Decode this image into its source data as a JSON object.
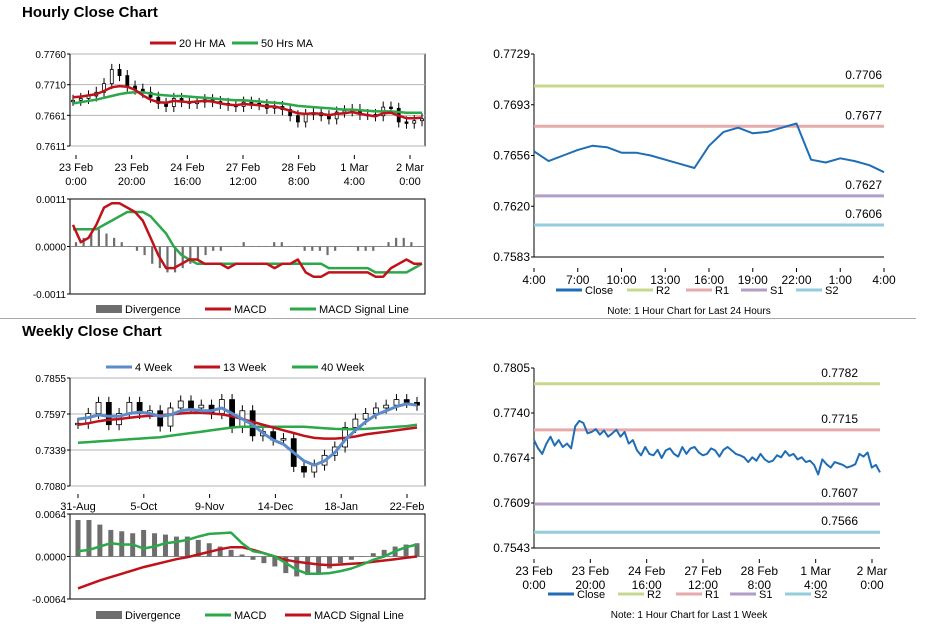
{
  "titles": {
    "hourly": "Hourly Close Chart",
    "weekly": "Weekly Close Chart"
  },
  "colors": {
    "ma20": "#c0121b",
    "ma50": "#2aa84a",
    "close": "#1f6eb5",
    "r2": "#c6d88e",
    "r1": "#e6aaaa",
    "s1": "#b19ec6",
    "s2": "#93cddc",
    "bars": "#6e6e6e",
    "grid": "#b4b4b4"
  },
  "chart_data": [
    {
      "id": "hourly-candles",
      "type": "candlestick",
      "legend": [
        "20 Hr MA",
        "50 Hrs MA"
      ],
      "legend_position": "top",
      "y_ticks": [
        "0.7760",
        "0.7710",
        "0.7661",
        "0.7611"
      ],
      "ylim": [
        0.7611,
        0.776
      ],
      "x_ticks": [
        [
          "23 Feb",
          "0:00"
        ],
        [
          "23 Feb",
          "20:00"
        ],
        [
          "24 Feb",
          "16:00"
        ],
        [
          "27 Feb",
          "12:00"
        ],
        [
          "28 Feb",
          "8:00"
        ],
        [
          "1 Mar",
          "4:00"
        ],
        [
          "2 Mar",
          "0:00"
        ]
      ],
      "grid": "horizontal",
      "close": [
        0.7685,
        0.7688,
        0.7692,
        0.7698,
        0.7712,
        0.7735,
        0.7725,
        0.7708,
        0.7703,
        0.7698,
        0.769,
        0.768,
        0.7675,
        0.7688,
        0.7683,
        0.768,
        0.7682,
        0.7686,
        0.7683,
        0.768,
        0.7677,
        0.7675,
        0.7682,
        0.768,
        0.7678,
        0.7672,
        0.7675,
        0.767,
        0.766,
        0.765,
        0.7662,
        0.7665,
        0.766,
        0.7655,
        0.7666,
        0.7668,
        0.767,
        0.7662,
        0.7662,
        0.766,
        0.7674,
        0.7672,
        0.765,
        0.7648,
        0.7652,
        0.7655
      ],
      "ma20": [
        0.769,
        0.7691,
        0.7693,
        0.7695,
        0.77,
        0.7706,
        0.7708,
        0.7707,
        0.7702,
        0.7693,
        0.7686,
        0.7682,
        0.7681,
        0.7684,
        0.7683,
        0.7682,
        0.7683,
        0.7684,
        0.7683,
        0.768,
        0.7678,
        0.7677,
        0.7679,
        0.7678,
        0.7677,
        0.7675,
        0.7675,
        0.7672,
        0.7668,
        0.7664,
        0.7663,
        0.7664,
        0.7663,
        0.7661,
        0.7663,
        0.7664,
        0.7666,
        0.7663,
        0.7661,
        0.7659,
        0.7664,
        0.7665,
        0.766,
        0.7656,
        0.7656,
        0.7657
      ],
      "ma50": [
        0.768,
        0.7682,
        0.7684,
        0.7686,
        0.7689,
        0.7692,
        0.7695,
        0.7697,
        0.7698,
        0.7698,
        0.7696,
        0.7694,
        0.7693,
        0.7692,
        0.7692,
        0.7691,
        0.769,
        0.7689,
        0.7688,
        0.7687,
        0.7686,
        0.7685,
        0.7685,
        0.7684,
        0.7683,
        0.7682,
        0.7681,
        0.768,
        0.7678,
        0.7676,
        0.7675,
        0.7674,
        0.7673,
        0.7672,
        0.7671,
        0.767,
        0.767,
        0.7669,
        0.7668,
        0.7667,
        0.7667,
        0.7667,
        0.7666,
        0.7665,
        0.7665,
        0.7665
      ]
    },
    {
      "id": "hourly-macd",
      "type": "bar+line",
      "y_ticks": [
        "0.0011",
        "0.0000",
        "-0.0011"
      ],
      "ylim": [
        -0.0011,
        0.0011
      ],
      "legend": [
        "Divergence",
        "MACD",
        "MACD Signal Line"
      ],
      "legend_position": "bottom",
      "divergence": [
        0.0001,
        0.0002,
        0.0003,
        0.0004,
        0.0003,
        0.0002,
        0.0001,
        0.0,
        -0.0001,
        -0.0002,
        -0.0004,
        -0.0005,
        -0.0006,
        -0.0006,
        -0.0005,
        -0.0004,
        -0.0003,
        -0.0002,
        -0.0001,
        -0.0001,
        0.0,
        0.0,
        0.0001,
        0.0,
        0.0,
        0.0,
        0.0001,
        0.0001,
        0.0,
        0.0,
        -0.0001,
        -0.0001,
        -0.0001,
        -0.0002,
        -0.0001,
        0.0,
        0.0,
        -0.0001,
        -0.0001,
        -0.0001,
        0.0,
        0.0001,
        0.0002,
        0.0002,
        0.0001,
        0.0
      ],
      "macd": [
        0.0005,
        0.0001,
        0.0002,
        0.0005,
        0.0009,
        0.001,
        0.001,
        0.0009,
        0.0008,
        0.0006,
        0.0002,
        -0.0002,
        -0.0005,
        -0.0005,
        -0.0004,
        -0.0003,
        -0.0003,
        -0.0004,
        -0.0004,
        -0.0004,
        -0.0005,
        -0.0004,
        -0.0004,
        -0.0004,
        -0.0004,
        -0.0004,
        -0.0005,
        -0.0004,
        -0.0004,
        -0.0003,
        -0.0006,
        -0.0007,
        -0.0007,
        -0.0006,
        -0.0006,
        -0.0006,
        -0.0006,
        -0.0006,
        -0.0006,
        -0.0007,
        -0.0007,
        -0.0005,
        -0.0004,
        -0.0003,
        -0.0004,
        -0.0004
      ],
      "signal": [
        0.0004,
        0.0004,
        0.0004,
        0.0004,
        0.0005,
        0.0006,
        0.0007,
        0.0008,
        0.0008,
        0.0008,
        0.0007,
        0.0005,
        0.0003,
        0.0,
        -0.0002,
        -0.0003,
        -0.0004,
        -0.0004,
        -0.0004,
        -0.0004,
        -0.0004,
        -0.0004,
        -0.0004,
        -0.0004,
        -0.0004,
        -0.0004,
        -0.0004,
        -0.0004,
        -0.0004,
        -0.0004,
        -0.0004,
        -0.0004,
        -0.0004,
        -0.0005,
        -0.0005,
        -0.0005,
        -0.0005,
        -0.0005,
        -0.0005,
        -0.0006,
        -0.0006,
        -0.0006,
        -0.0006,
        -0.0006,
        -0.0005,
        -0.0004
      ]
    },
    {
      "id": "hourly-close",
      "type": "line",
      "y_ticks": [
        "0.7729",
        "0.7693",
        "0.7656",
        "0.7620",
        "0.7583"
      ],
      "ylim": [
        0.7583,
        0.7729
      ],
      "x_ticks": [
        "4:00",
        "7:00",
        "10:00",
        "13:00",
        "16:00",
        "19:00",
        "22:00",
        "1:00",
        "4:00"
      ],
      "xlim": [
        0,
        24
      ],
      "legend": [
        "Close",
        "R2",
        "R1",
        "S1",
        "S2"
      ],
      "legend_position": "bottom",
      "note": "Note: 1 Hour Chart for Last 24 Hours",
      "levels": {
        "r2": 0.7706,
        "r1": 0.7677,
        "s1": 0.7627,
        "s2": 0.7606
      },
      "level_labels": {
        "r2": "0.7706",
        "r1": "0.7677",
        "s1": "0.7627",
        "s2": "0.7606"
      },
      "x": [
        0,
        1,
        2,
        3,
        4,
        5,
        6,
        7,
        8,
        9,
        10,
        11,
        12,
        13,
        14,
        15,
        16,
        17,
        18,
        19,
        20,
        21,
        22,
        23,
        24
      ],
      "close": [
        0.7659,
        0.7652,
        0.7656,
        0.766,
        0.7663,
        0.7662,
        0.7658,
        0.7658,
        0.7656,
        0.7653,
        0.765,
        0.7647,
        0.7663,
        0.7673,
        0.7676,
        0.7672,
        0.7673,
        0.7676,
        0.7679,
        0.7653,
        0.7651,
        0.7654,
        0.7652,
        0.7649,
        0.7644
      ]
    },
    {
      "id": "weekly-candles",
      "type": "candlestick",
      "legend": [
        "4 Week",
        "13 Week",
        "40 Week"
      ],
      "legend_position": "top",
      "y_ticks": [
        "0.7855",
        "0.7597",
        "0.7339",
        "0.7080"
      ],
      "ylim": [
        0.708,
        0.7855
      ],
      "x_ticks": [
        "31-Aug",
        "5-Oct",
        "9-Nov",
        "14-Dec",
        "18-Jan",
        "22-Feb"
      ],
      "grid": "horizontal",
      "close": [
        0.753,
        0.76,
        0.768,
        0.752,
        0.76,
        0.768,
        0.76,
        0.762,
        0.751,
        0.764,
        0.769,
        0.764,
        0.766,
        0.76,
        0.77,
        0.75,
        0.762,
        0.744,
        0.747,
        0.741,
        0.742,
        0.722,
        0.718,
        0.723,
        0.73,
        0.736,
        0.75,
        0.756,
        0.76,
        0.764,
        0.766,
        0.77,
        0.768,
        0.766
      ],
      "ma4": [
        0.756,
        0.757,
        0.759,
        0.758,
        0.758,
        0.76,
        0.761,
        0.76,
        0.758,
        0.759,
        0.762,
        0.763,
        0.762,
        0.762,
        0.764,
        0.76,
        0.756,
        0.752,
        0.746,
        0.741,
        0.738,
        0.732,
        0.726,
        0.723,
        0.726,
        0.732,
        0.741,
        0.748,
        0.754,
        0.759,
        0.762,
        0.765,
        0.767,
        0.766
      ],
      "ma13": [
        0.752,
        0.753,
        0.7545,
        0.7555,
        0.756,
        0.757,
        0.7578,
        0.7584,
        0.7588,
        0.7594,
        0.76,
        0.7605,
        0.7606,
        0.76,
        0.7594,
        0.758,
        0.756,
        0.754,
        0.752,
        0.75,
        0.748,
        0.746,
        0.744,
        0.7425,
        0.742,
        0.742,
        0.7425,
        0.7435,
        0.745,
        0.746,
        0.747,
        0.748,
        0.749,
        0.75
      ],
      "ma40": [
        0.739,
        0.7395,
        0.74,
        0.7405,
        0.741,
        0.7415,
        0.742,
        0.7425,
        0.743,
        0.744,
        0.745,
        0.746,
        0.747,
        0.748,
        0.749,
        0.75,
        0.7505,
        0.7505,
        0.7505,
        0.7505,
        0.7505,
        0.7505,
        0.7505,
        0.75,
        0.7495,
        0.749,
        0.7488,
        0.7488,
        0.749,
        0.7495,
        0.75,
        0.7505,
        0.751,
        0.752
      ]
    },
    {
      "id": "weekly-macd",
      "type": "bar+line",
      "y_ticks": [
        "0.0064",
        "0.0000",
        "-0.0064"
      ],
      "ylim": [
        -0.0064,
        0.0064
      ],
      "legend": [
        "Divergence",
        "MACD",
        "MACD Signal Line"
      ],
      "legend_position": "bottom",
      "divergence": [
        0.0055,
        0.0055,
        0.0048,
        0.004,
        0.0038,
        0.0035,
        0.004,
        0.0035,
        0.0033,
        0.003,
        0.003,
        0.0025,
        0.002,
        0.0015,
        0.001,
        0.0003,
        -0.0005,
        -0.001,
        -0.0015,
        -0.0025,
        -0.003,
        -0.0028,
        -0.0025,
        -0.0018,
        -0.001,
        -0.0005,
        0.0,
        0.0005,
        0.001,
        0.0015,
        0.0018,
        0.002
      ],
      "macd": [
        0.0008,
        0.001,
        0.0015,
        0.002,
        0.0018,
        0.0018,
        0.0012,
        0.0015,
        0.002,
        0.0022,
        0.0025,
        0.003,
        0.0034,
        0.0035,
        0.0036,
        0.002,
        0.0008,
        0.0005,
        0.0,
        -0.001,
        -0.002,
        -0.0026,
        -0.0026,
        -0.0025,
        -0.0022,
        -0.0018,
        -0.0012,
        -0.0005,
        0.0,
        0.0008,
        0.0014,
        0.0018
      ],
      "signal": [
        -0.0048,
        -0.0042,
        -0.0036,
        -0.0031,
        -0.0026,
        -0.0021,
        -0.0016,
        -0.0012,
        -0.0008,
        -0.0004,
        -0.0001,
        0.0003,
        0.0007,
        0.0011,
        0.0014,
        0.0014,
        0.001,
        0.0005,
        0.0,
        -0.0005,
        -0.0008,
        -0.001,
        -0.0012,
        -0.0013,
        -0.0012,
        -0.0011,
        -0.001,
        -0.0008,
        -0.0006,
        -0.0004,
        -0.0002,
        0.0
      ]
    },
    {
      "id": "weekly-close",
      "type": "line",
      "y_ticks": [
        "0.7805",
        "0.7740",
        "0.7674",
        "0.7609",
        "0.7543"
      ],
      "ylim": [
        0.7543,
        0.7805
      ],
      "x_ticks": [
        [
          "23 Feb",
          "0:00"
        ],
        [
          "23 Feb",
          "20:00"
        ],
        [
          "24 Feb",
          "16:00"
        ],
        [
          "27 Feb",
          "12:00"
        ],
        [
          "28 Feb",
          "8:00"
        ],
        [
          "1 Mar",
          "4:00"
        ],
        [
          "2 Mar",
          "0:00"
        ]
      ],
      "legend": [
        "Close",
        "R2",
        "R1",
        "S1",
        "S2"
      ],
      "legend_position": "bottom",
      "note": "Note: 1 Hour Chart for Last 1 Week",
      "levels": {
        "r2": 0.7782,
        "r1": 0.7715,
        "s1": 0.7607,
        "s2": 0.7566
      },
      "level_labels": {
        "r2": "0.7782",
        "r1": "0.7715",
        "s1": "0.7607",
        "s2": "0.7566"
      },
      "close": [
        0.77,
        0.7688,
        0.768,
        0.7695,
        0.7705,
        0.7692,
        0.77,
        0.769,
        0.7695,
        0.7688,
        0.772,
        0.7728,
        0.7725,
        0.771,
        0.7712,
        0.7716,
        0.7708,
        0.7714,
        0.7705,
        0.771,
        0.7715,
        0.7705,
        0.7712,
        0.7695,
        0.77,
        0.7685,
        0.7678,
        0.769,
        0.768,
        0.7678,
        0.7686,
        0.7674,
        0.7685,
        0.7688,
        0.768,
        0.7676,
        0.769,
        0.768,
        0.7688,
        0.769,
        0.7682,
        0.7678,
        0.768,
        0.7688,
        0.7685,
        0.7676,
        0.7686,
        0.769,
        0.7685,
        0.768,
        0.7678,
        0.7675,
        0.7668,
        0.7675,
        0.767,
        0.768,
        0.7672,
        0.7668,
        0.767,
        0.7678,
        0.7675,
        0.7684,
        0.7677,
        0.768,
        0.7672,
        0.7675,
        0.7668,
        0.767,
        0.7664,
        0.765,
        0.7672,
        0.7665,
        0.766,
        0.7668,
        0.7666,
        0.7664,
        0.766,
        0.7662,
        0.7665,
        0.768,
        0.7676,
        0.7682,
        0.766,
        0.7664,
        0.7653
      ]
    }
  ]
}
